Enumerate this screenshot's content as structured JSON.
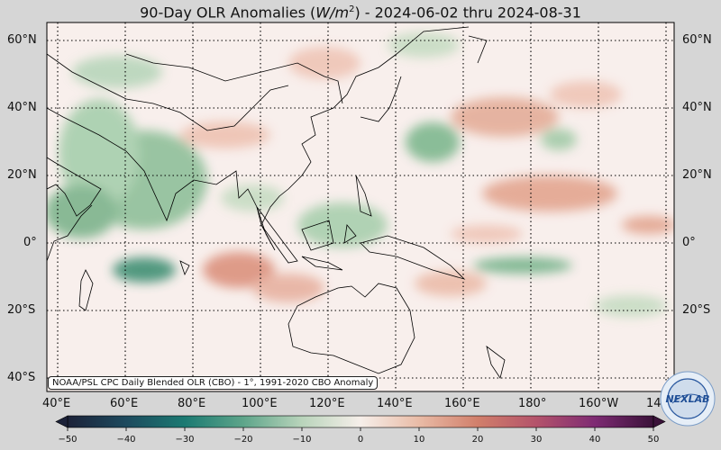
{
  "title": "90-Day OLR Anomalies (W/m²) - 2024-06-02 thru 2024-08-31",
  "title_parts": {
    "prefix": "90-Day OLR Anomalies (",
    "unit": "W/m",
    "sup": "2",
    "suffix": ") - 2024-06-02 thru 2024-08-31"
  },
  "credit": "NOAA/PSL CPC Daily Blended OLR (CBO) - 1°, 1991-2020 CBO Anomaly",
  "lat_labels_left": [
    "60°N",
    "40°N",
    "20°N",
    "0°",
    "20°S",
    "40°S"
  ],
  "lat_labels_right": [
    "60°N",
    "40°N",
    "20°N",
    "0°",
    "20°S"
  ],
  "lon_labels": [
    "40°E",
    "60°E",
    "80°E",
    "100°E",
    "120°E",
    "140°E",
    "160°E",
    "180°",
    "160°W",
    "14"
  ],
  "colorbar": {
    "ticks": [
      "−50",
      "−40",
      "−30",
      "−20",
      "−10",
      "0",
      "10",
      "20",
      "30",
      "40",
      "50"
    ],
    "range": [
      -50,
      50
    ],
    "stops": [
      {
        "v": -50,
        "c": "#1c2239"
      },
      {
        "v": -40,
        "c": "#1d4a5e"
      },
      {
        "v": -30,
        "c": "#1b7a72"
      },
      {
        "v": -20,
        "c": "#5ea58a"
      },
      {
        "v": -10,
        "c": "#b9d4bb"
      },
      {
        "v": 0,
        "c": "#f6efea"
      },
      {
        "v": 10,
        "c": "#e9bba6"
      },
      {
        "v": 20,
        "c": "#d17f6b"
      },
      {
        "v": 30,
        "c": "#b4536b"
      },
      {
        "v": 40,
        "c": "#7e2b73"
      },
      {
        "v": 50,
        "c": "#3a1239"
      }
    ]
  },
  "logo_text": "NEXLAB",
  "colors": {
    "background": "#d6d6d6",
    "neutral": "#f8efec",
    "border": "#000000"
  }
}
